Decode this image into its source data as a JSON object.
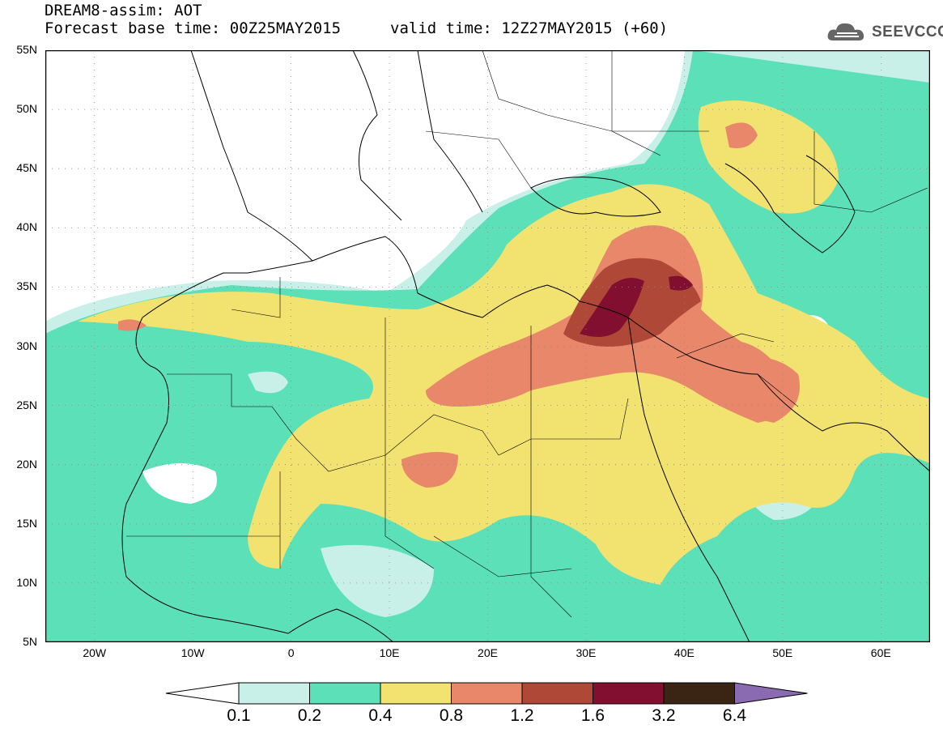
{
  "header": {
    "line1": "DREAM8-assim: AOT",
    "line2": "Forecast base time: 00Z25MAY2015",
    "valid": "valid time: 12Z27MAY2015 (+60)"
  },
  "logo": {
    "text": "SEEVCCC",
    "icon": "cloud-icon"
  },
  "map": {
    "lon_range": [
      -25,
      65
    ],
    "lat_range": [
      5,
      55
    ],
    "x_ticks": [
      "20W",
      "10W",
      "0",
      "10E",
      "20E",
      "30E",
      "40E",
      "50E",
      "60E"
    ],
    "y_ticks": [
      "55N",
      "50N",
      "45N",
      "40N",
      "35N",
      "30N",
      "25N",
      "20N",
      "15N",
      "10N",
      "5N"
    ],
    "grid": "dotted",
    "field": "aerosol optical thickness"
  },
  "colorbar": {
    "labels": [
      "0.1",
      "0.2",
      "0.4",
      "0.8",
      "1.2",
      "1.6",
      "3.2",
      "6.4"
    ],
    "colors": [
      "#c8f0e8",
      "#5ce0b8",
      "#f2e270",
      "#e8876a",
      "#b04838",
      "#820e30",
      "#3a2414",
      "#8a6ab0"
    ]
  }
}
